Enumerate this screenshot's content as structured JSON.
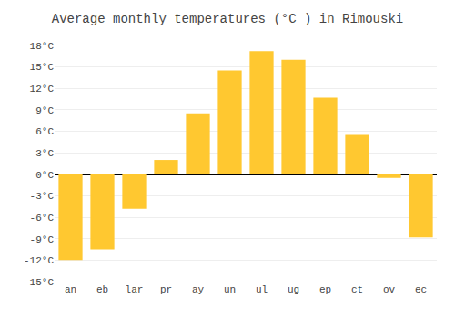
{
  "chart_data": {
    "type": "bar",
    "title": "Average monthly temperatures (°C ) in Rimouski",
    "categories": [
      "an",
      "eb",
      "lar",
      "pr",
      "ay",
      "un",
      "ul",
      "ug",
      "ep",
      "ct",
      "ov",
      "ec"
    ],
    "values": [
      -12.0,
      -10.5,
      -4.8,
      2.0,
      8.5,
      14.5,
      17.2,
      16.0,
      10.7,
      5.5,
      -0.5,
      -8.8
    ],
    "color": "#FFC830",
    "ylim": [
      -15,
      18
    ],
    "yticks": [
      {
        "value": -15,
        "label": "-15°C"
      },
      {
        "value": -12,
        "label": "-12°C"
      },
      {
        "value": -9,
        "label": "-9°C"
      },
      {
        "value": -6,
        "label": "-6°C"
      },
      {
        "value": -3,
        "label": "-3°C"
      },
      {
        "value": 0,
        "label": "0°C"
      },
      {
        "value": 3,
        "label": "3°C"
      },
      {
        "value": 6,
        "label": "6°C"
      },
      {
        "value": 9,
        "label": "9°C"
      },
      {
        "value": 12,
        "label": "12°C"
      },
      {
        "value": 15,
        "label": "15°C"
      },
      {
        "value": 18,
        "label": "18°C"
      }
    ],
    "grid": true
  }
}
